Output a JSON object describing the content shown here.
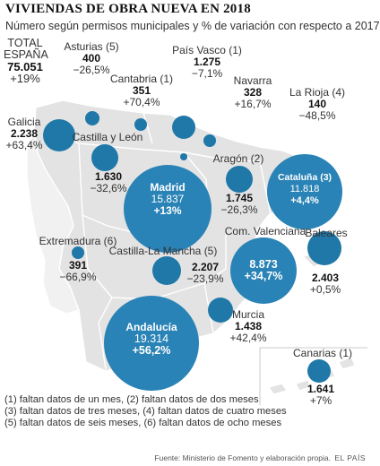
{
  "title": "VIVIENDAS DE OBRA NUEVA EN 2018",
  "subtitle": "Número según permisos municipales y % de variación con respecto a 2017",
  "total": {
    "label_line1": "TOTAL",
    "label_line2": "ESPAÑA",
    "value": "75.051",
    "change": "+19%"
  },
  "regions": [
    {
      "key": "asturias",
      "name": "Asturias (5)",
      "value": "400",
      "change": "−26,5%"
    },
    {
      "key": "pais_vasco",
      "name": "País Vasco (1)",
      "value": "1.275",
      "change": "−7,1%"
    },
    {
      "key": "cantabria",
      "name": "Cantabria (1)",
      "value": "351",
      "change": "+70,4%"
    },
    {
      "key": "navarra",
      "name": "Navarra",
      "value": "328",
      "change": "+16,7%"
    },
    {
      "key": "la_rioja",
      "name": "La Rioja (4)",
      "value": "140",
      "change": "−48,5%"
    },
    {
      "key": "galicia",
      "name": "Galicia",
      "value": "2.238",
      "change": "+63,4%"
    },
    {
      "key": "castilla_leon",
      "name": "Castilla y León",
      "value": "1.630",
      "change": "−32,6%"
    },
    {
      "key": "aragon",
      "name": "Aragón (2)",
      "value": "1.745",
      "change": "−26,3%"
    },
    {
      "key": "madrid",
      "name": "Madrid",
      "value": "15.837",
      "change": "+13%"
    },
    {
      "key": "cataluna",
      "name": "Cataluña (3)",
      "value": "11.818",
      "change": "+4,4%"
    },
    {
      "key": "extremadura",
      "name": "Extremadura (6)",
      "value": "391",
      "change": "−66,9%"
    },
    {
      "key": "castilla_mancha",
      "name": "Castilla-La Mancha (5)",
      "value": "2.207",
      "change": "−23,9%"
    },
    {
      "key": "valenciana",
      "name": "Com. Valenciana",
      "value": "8.873",
      "change": "+34,7%"
    },
    {
      "key": "baleares",
      "name": "Baleares",
      "value": "2.403",
      "change": "+0,5%"
    },
    {
      "key": "andalucia",
      "name": "Andalucía",
      "value": "19.314",
      "change": "+56,2%"
    },
    {
      "key": "murcia",
      "name": "Murcia",
      "value": "1.438",
      "change": "+42,4%"
    },
    {
      "key": "canarias",
      "name": "Canarias (1)",
      "value": "1.641",
      "change": "+7%"
    }
  ],
  "notes": [
    "(1) faltan datos de un mes, (2) faltan datos de dos meses",
    "(3) faltan datos de tres meses, (4) faltan datos de cuatro meses",
    "(5) faltan datos de seis meses, (6) faltan datos de ocho meses"
  ],
  "source": "Fuente: Ministerio de Fomento y elaboración propia.",
  "brand": "EL PAÍS",
  "colors": {
    "bubble": "#1f78a8",
    "land": "#e3e3e3",
    "land_stroke": "#ffffff"
  }
}
